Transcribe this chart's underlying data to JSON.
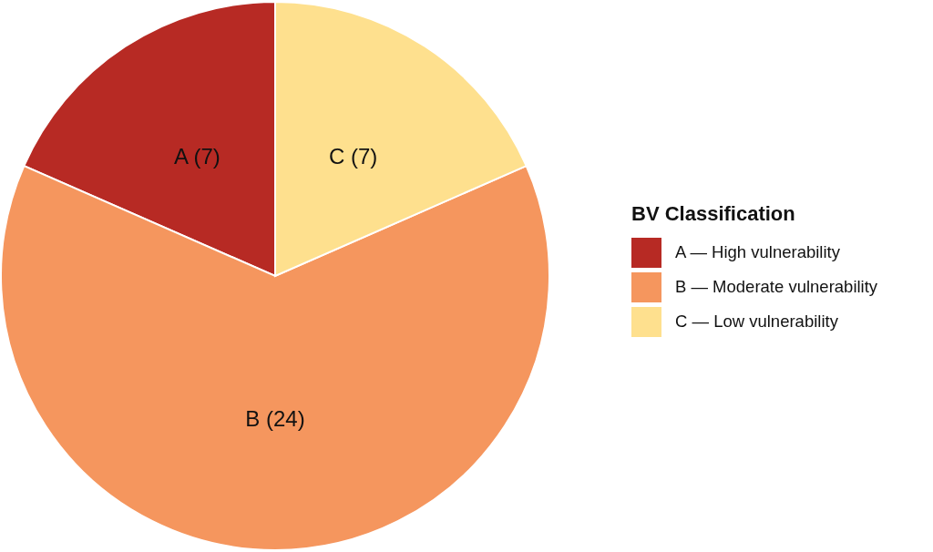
{
  "chart_data": {
    "type": "pie",
    "legend_title": "BV Classification",
    "categories": [
      "A — High vulnerability",
      "B — Moderate vulnerability",
      "C — Low vulnerability"
    ],
    "values": [
      7,
      24,
      7
    ],
    "colors": [
      "#b72a24",
      "#f5965e",
      "#fee08e"
    ],
    "value_labels": [
      "A (7)",
      "B (24)",
      "C (7)"
    ],
    "legend": "right"
  }
}
